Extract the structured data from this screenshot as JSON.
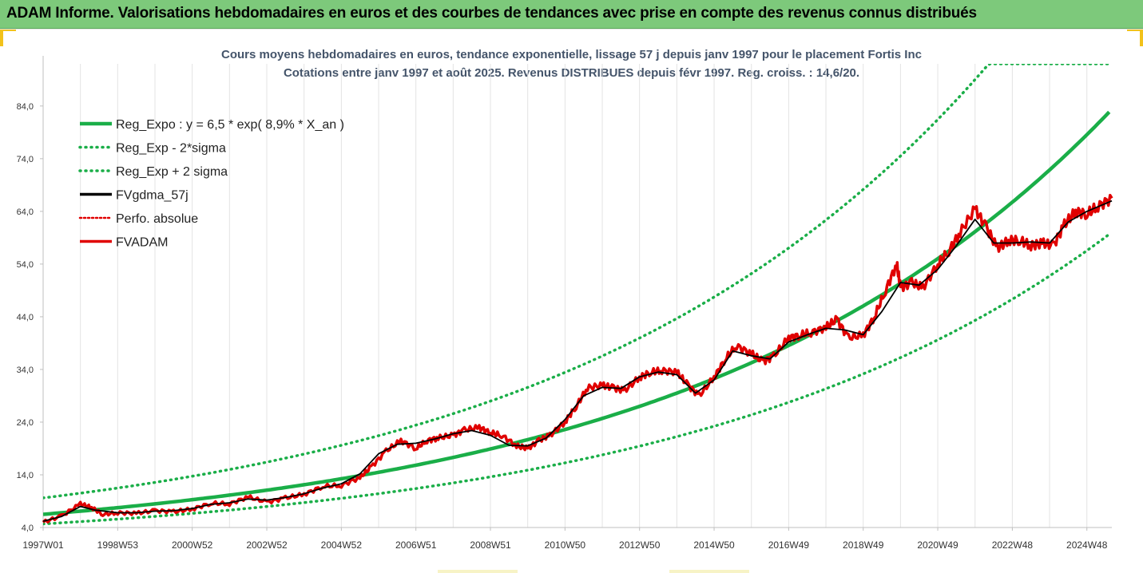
{
  "banner": {
    "title": "ADAM Informe. Valorisations hebdomadaires en euros et des courbes de tendances avec prise en compte des revenus connus distribués"
  },
  "chart_data": {
    "type": "line",
    "title": "Cours moyens hebdomadaires en euros, tendance exponentielle, lissage 57 j depuis janv 1997 pour le placement Fortis Inc",
    "subtitle": "Cotations entre janv 1997 et août 2025.  Revenus DISTRIBUES depuis févr 1997.  Reg. croiss. : 14,6/20.",
    "xlabel": "",
    "ylabel": "",
    "ylim": [
      4,
      92
    ],
    "xlim": [
      1997.0,
      2025.67
    ],
    "yticks": [
      "4,0",
      "14,0",
      "24,0",
      "34,0",
      "44,0",
      "54,0",
      "64,0",
      "74,0",
      "84,0"
    ],
    "ytick_values": [
      4,
      14,
      24,
      34,
      44,
      54,
      64,
      74,
      84
    ],
    "xticks": [
      "1997W01",
      "1998W53",
      "2000W52",
      "2002W52",
      "2004W52",
      "2006W51",
      "2008W51",
      "2010W50",
      "2012W50",
      "2014W50",
      "2016W49",
      "2018W49",
      "2020W49",
      "2022W48",
      "2024W48"
    ],
    "xtick_values": [
      1997.0,
      1999.0,
      2001.0,
      2003.0,
      2005.0,
      2007.0,
      2009.0,
      2011.0,
      2013.0,
      2015.0,
      2017.0,
      2019.0,
      2021.0,
      2023.0,
      2025.0
    ],
    "grid": "vertical",
    "legend_position": "top-left",
    "regression": {
      "a": 6.5,
      "rate": 0.089,
      "band_factor_low": 0.72,
      "band_factor_high": 1.48
    },
    "series": [
      {
        "name": "Reg_Expo : y = 6,5 * exp( 8,9% *  X_an )",
        "color": "#1aae48",
        "style": "solid"
      },
      {
        "name": "Reg_Exp - 2*sigma",
        "color": "#1aae48",
        "style": "dotted"
      },
      {
        "name": "Reg_Exp + 2 sigma",
        "color": "#1aae48",
        "style": "dotted"
      },
      {
        "name": "FVgdma_57j",
        "color": "#000000",
        "style": "solid"
      },
      {
        "name": "Perfo. absolue",
        "color": "#e00000",
        "style": "dotted"
      },
      {
        "name": "FVADAM",
        "color": "#e00000",
        "style": "solid"
      }
    ],
    "fvadam": {
      "x": [
        1997.0,
        1997.5,
        1998.0,
        1998.3,
        1998.6,
        1999.0,
        1999.5,
        2000.0,
        2000.5,
        2001.0,
        2001.5,
        2002.0,
        2002.5,
        2003.0,
        2003.5,
        2004.0,
        2004.5,
        2005.0,
        2005.5,
        2005.8,
        2006.2,
        2006.6,
        2007.0,
        2007.3,
        2007.6,
        2008.0,
        2008.3,
        2008.7,
        2009.0,
        2009.3,
        2009.7,
        2010.0,
        2010.3,
        2010.6,
        2011.0,
        2011.3,
        2011.6,
        2012.0,
        2012.3,
        2012.6,
        2013.0,
        2013.3,
        2013.6,
        2014.0,
        2014.3,
        2014.6,
        2015.0,
        2015.3,
        2015.6,
        2016.0,
        2016.3,
        2016.6,
        2017.0,
        2017.3,
        2017.6,
        2018.0,
        2018.3,
        2018.6,
        2019.0,
        2019.3,
        2019.6,
        2019.9,
        2020.0,
        2020.3,
        2020.6,
        2021.0,
        2021.3,
        2021.6,
        2022.0,
        2022.3,
        2022.6,
        2022.9,
        2023.2,
        2023.5,
        2023.8,
        2024.1,
        2024.4,
        2024.7,
        2025.0,
        2025.3,
        2025.67
      ],
      "y": [
        5.0,
        6.2,
        8.5,
        7.8,
        6.5,
        6.8,
        6.7,
        7.2,
        7.0,
        7.5,
        8.6,
        8.5,
        9.8,
        8.8,
        9.6,
        10.3,
        11.8,
        12.0,
        13.5,
        15.5,
        18.5,
        20.5,
        19.0,
        20.5,
        21.0,
        21.5,
        22.5,
        23.0,
        22.0,
        21.5,
        19.5,
        19.0,
        20.5,
        21.5,
        24.0,
        27.0,
        30.5,
        31.0,
        30.5,
        30.0,
        32.5,
        33.5,
        33.8,
        33.5,
        31.0,
        29.0,
        32.5,
        36.0,
        38.5,
        37.0,
        35.5,
        36.5,
        40.0,
        40.5,
        41.0,
        42.0,
        43.5,
        40.0,
        40.5,
        44.0,
        49.0,
        54.0,
        49.5,
        50.5,
        49.5,
        54.0,
        56.5,
        60.0,
        64.5,
        61.0,
        57.0,
        58.5,
        58.5,
        57.5,
        58.0,
        57.5,
        61.5,
        64.0,
        63.5,
        65.0,
        66.5
      ]
    },
    "fvgdma_57j": {
      "x": [
        1997.0,
        1997.5,
        1998.0,
        1998.4,
        1999.0,
        1999.5,
        2000.0,
        2000.5,
        2001.0,
        2001.5,
        2002.0,
        2002.5,
        2003.0,
        2003.5,
        2004.0,
        2004.5,
        2005.0,
        2005.5,
        2006.0,
        2006.5,
        2007.0,
        2007.5,
        2008.0,
        2008.5,
        2009.0,
        2009.5,
        2010.0,
        2010.5,
        2011.0,
        2011.5,
        2012.0,
        2012.5,
        2013.0,
        2013.5,
        2014.0,
        2014.5,
        2015.0,
        2015.5,
        2016.0,
        2016.5,
        2017.0,
        2017.5,
        2018.0,
        2018.5,
        2019.0,
        2019.5,
        2020.0,
        2020.5,
        2021.0,
        2021.5,
        2022.0,
        2022.5,
        2023.0,
        2023.5,
        2024.0,
        2024.5,
        2025.0,
        2025.67
      ],
      "y": [
        5.2,
        6.1,
        8.0,
        7.3,
        6.8,
        6.8,
        7.1,
        7.2,
        7.6,
        8.4,
        8.7,
        9.4,
        9.2,
        9.7,
        10.4,
        11.5,
        12.3,
        14.2,
        18.0,
        19.8,
        20.0,
        20.8,
        21.8,
        22.4,
        21.5,
        19.6,
        19.5,
        21.0,
        24.5,
        29.0,
        30.6,
        30.4,
        32.6,
        33.5,
        33.0,
        29.5,
        32.0,
        37.5,
        36.6,
        36.0,
        39.2,
        40.6,
        41.8,
        41.5,
        40.6,
        45.0,
        50.5,
        50.0,
        53.0,
        57.5,
        62.5,
        58.0,
        58.0,
        58.2,
        58.0,
        62.0,
        64.0,
        66.0
      ]
    }
  }
}
